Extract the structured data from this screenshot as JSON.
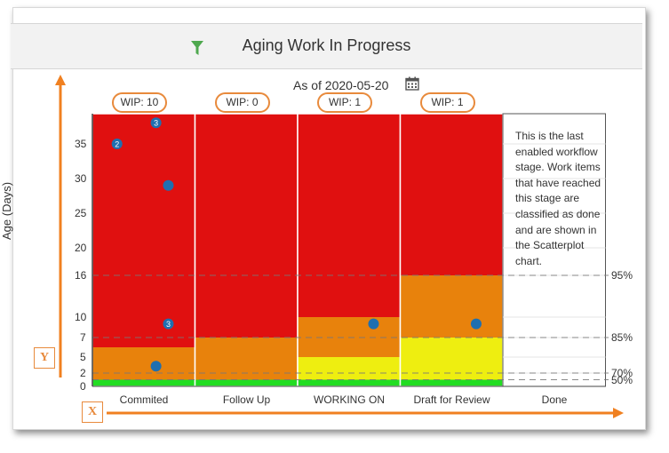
{
  "header": {
    "title": "Aging Work In Progress",
    "filter_icon": "filter-funnel-icon"
  },
  "as_of": {
    "label": "As of 2020-05-20",
    "calendar_icon": "calendar-icon"
  },
  "done_note": "This is the last enabled workflow stage. Work items that have reached this stage are classified as done and are shown in the Scatterplot chart.",
  "axis_markers": {
    "y": "Y",
    "x": "X"
  },
  "colors": {
    "red": "#e01010",
    "orange": "#e8820c",
    "yellow": "#eeee10",
    "green": "#22dd22",
    "dot": "#1f6fb0",
    "arrow": "#f08020"
  },
  "chart_data": {
    "type": "scatter",
    "ylabel": "Age (Days)",
    "categories": [
      "Commited",
      "Follow Up",
      "WORKING ON",
      "Draft for Review",
      "Done"
    ],
    "wip": [
      "WIP: 10",
      "WIP: 0",
      "WIP: 1",
      "WIP: 1",
      ""
    ],
    "yticks": [
      "0",
      "2",
      "5",
      "7",
      "10",
      "16",
      "20",
      "25",
      "30",
      "35"
    ],
    "percentiles": [
      {
        "label": "95%",
        "value": 16
      },
      {
        "label": "85%",
        "value": 7
      },
      {
        "label": "70%",
        "value": 2
      },
      {
        "label": "50%",
        "value": 1
      }
    ],
    "bands": [
      {
        "green": 1,
        "yellow": 1,
        "orange": 6
      },
      {
        "green": 1,
        "yellow": 1,
        "orange": 7
      },
      {
        "green": 1,
        "yellow": 5,
        "orange": 10
      },
      {
        "green": 1,
        "yellow": 7,
        "orange": 16
      },
      null
    ],
    "points": [
      {
        "stage": 0,
        "offset": 0.24,
        "age": 35,
        "count": "2"
      },
      {
        "stage": 0,
        "offset": 0.62,
        "age": 38.5,
        "count": "3"
      },
      {
        "stage": 0,
        "offset": 0.74,
        "age": 29,
        "count": ""
      },
      {
        "stage": 0,
        "offset": 0.74,
        "age": 9,
        "count": "3"
      },
      {
        "stage": 0,
        "offset": 0.62,
        "age": 3.3,
        "count": ""
      },
      {
        "stage": 2,
        "offset": 0.74,
        "age": 9,
        "count": ""
      },
      {
        "stage": 3,
        "offset": 0.74,
        "age": 9,
        "count": ""
      }
    ]
  }
}
